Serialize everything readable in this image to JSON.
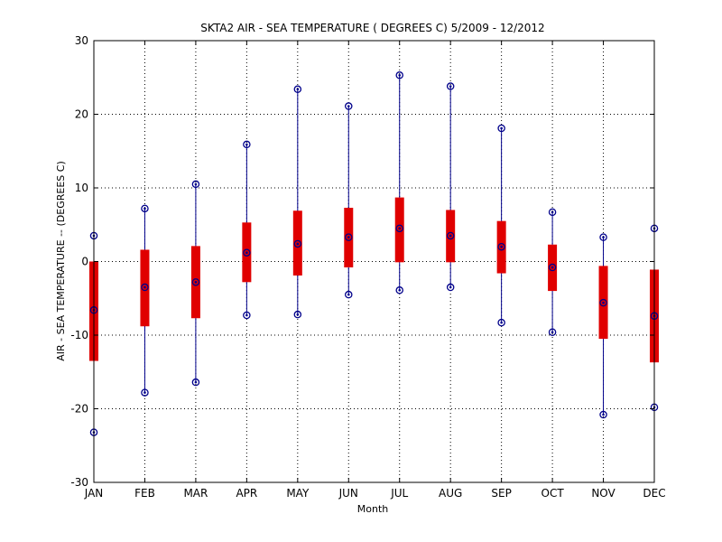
{
  "chart_data": {
    "type": "boxplot",
    "title": "SKTA2  AIR - SEA TEMPERATURE ( DEGREES C) 5/2009 - 12/2012",
    "xlabel": "Month",
    "ylabel": "AIR - SEA TEMPERATURE -- (DEGREES C)",
    "ylim": [
      -30,
      30
    ],
    "yticks": [
      -30,
      -20,
      -10,
      0,
      10,
      20,
      30
    ],
    "grid": true,
    "categories": [
      "JAN",
      "FEB",
      "MAR",
      "APR",
      "MAY",
      "JUN",
      "JUL",
      "AUG",
      "SEP",
      "OCT",
      "NOV",
      "DEC"
    ],
    "whisker_low": [
      -23.2,
      -17.8,
      -16.4,
      -7.3,
      -7.2,
      -4.5,
      -3.9,
      -3.5,
      -8.3,
      -9.6,
      -20.8,
      -19.8
    ],
    "q1": [
      -13.5,
      -8.8,
      -7.7,
      -2.8,
      -1.9,
      -0.8,
      -0.1,
      -0.1,
      -1.6,
      -4.0,
      -10.5,
      -13.7
    ],
    "median": [
      -6.6,
      -3.5,
      -2.8,
      1.2,
      2.4,
      3.3,
      4.5,
      3.5,
      2.0,
      -0.8,
      -5.6,
      -7.4
    ],
    "q3": [
      0.0,
      1.6,
      2.1,
      5.3,
      6.9,
      7.3,
      8.7,
      7.0,
      5.5,
      2.3,
      -0.6,
      -1.1
    ],
    "whisker_high": [
      3.5,
      7.2,
      10.5,
      15.9,
      23.4,
      21.1,
      25.3,
      23.8,
      18.1,
      6.7,
      3.3,
      4.5
    ],
    "colors": {
      "box": "#e00000",
      "whisker": "#00008b",
      "marker": "#00008b",
      "grid": "#000000",
      "axes": "#000000"
    }
  }
}
